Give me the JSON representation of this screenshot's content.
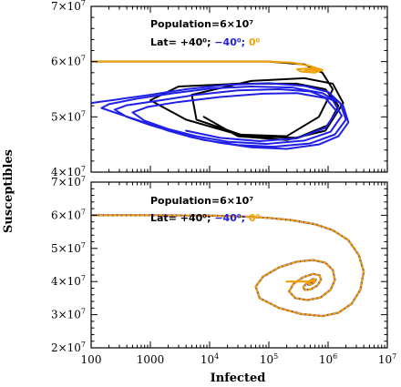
{
  "chart_data": [
    {
      "type": "line",
      "panel": "top",
      "xscale": "log",
      "xlim": [
        100,
        10000000
      ],
      "ylim": [
        20000000,
        70000000
      ],
      "visible_ylim": [
        40000000,
        70000000
      ],
      "xticks": [
        "",
        "",
        "",
        "",
        "",
        ""
      ],
      "yticks": [
        "4×10⁷",
        "5×10⁷",
        "6×10⁷",
        "7×10⁷"
      ],
      "yticks_pos": [
        40000000,
        50000000,
        60000000,
        70000000
      ],
      "annotation_population": "Population=6×10⁷",
      "annotation_lat_prefix": "Lat=",
      "annotation_lat": [
        {
          "text": "+40⁰;",
          "color": "#000000"
        },
        {
          "text": "−40⁰;",
          "color": "#1f1fe6"
        },
        {
          "text": "0⁰",
          "color": "#f0a000"
        }
      ],
      "series": [
        {
          "color": "#000000",
          "x": [
            100,
            100000,
            400000,
            800000,
            1200000,
            700000,
            200000,
            30000,
            4000,
            1000,
            3000,
            30000,
            300000,
            900000,
            1500000,
            1000000,
            300000,
            40000,
            6000,
            5000,
            50000,
            400000,
            1200000,
            1800000,
            900000,
            200000,
            30000,
            8000
          ],
          "y": [
            60000000,
            60000000,
            59500000,
            58000000,
            55000000,
            50000000,
            46500000,
            46800000,
            49500000,
            53000000,
            55500000,
            56000000,
            56000000,
            55000000,
            52000000,
            48500000,
            46200000,
            46500000,
            49500000,
            54000000,
            56500000,
            57000000,
            56000000,
            52500000,
            47500000,
            45800000,
            46500000,
            50000000
          ]
        },
        {
          "color": "#f0a000",
          "x": [
            100,
            100000,
            250000,
            500000,
            800000,
            600000,
            350000,
            300000,
            500000,
            700000,
            550000,
            400000,
            450000,
            600000
          ],
          "y": [
            60000000,
            60000000,
            59800000,
            59200000,
            58500000,
            58000000,
            58200000,
            58600000,
            58800000,
            58500000,
            58100000,
            58300000,
            58600000,
            58400000
          ]
        },
        {
          "color": "#1f1fe6",
          "x": [
            100,
            300,
            1000,
            4000,
            20000,
            100000,
            400000,
            1000000,
            1800000,
            2200000,
            1500000,
            700000,
            200000,
            50000,
            15000,
            5000,
            2000,
            800,
            300,
            150,
            200,
            600,
            2500,
            10000,
            50000,
            250000,
            800000,
            1600000,
            2000000,
            1300000,
            500000,
            120000,
            30000,
            8000,
            3000,
            1000,
            400,
            250,
            400,
            1500,
            6000,
            30000,
            150000,
            500000,
            1200000,
            1700000,
            1100000,
            400000,
            90000,
            20000,
            6000,
            2000,
            800,
            500,
            900,
            3000,
            15000,
            80000,
            300000,
            900000,
            1400000,
            900000,
            300000,
            70000,
            15000,
            4000
          ],
          "y": [
            52500000,
            53200000,
            54000000,
            55000000,
            55800000,
            56100000,
            55600000,
            54500000,
            52000000,
            49000000,
            46500000,
            45000000,
            44200000,
            44500000,
            45300000,
            46300000,
            47500000,
            49000000,
            50500000,
            51600000,
            52300000,
            53300000,
            54300000,
            55100000,
            55500000,
            55300000,
            54300000,
            52500000,
            49500000,
            46800000,
            45200000,
            44600000,
            44900000,
            45800000,
            47000000,
            48500000,
            50000000,
            51300000,
            52100000,
            53000000,
            54000000,
            54800000,
            55000000,
            54600000,
            53000000,
            50200000,
            47300000,
            45700000,
            45100000,
            45500000,
            46500000,
            47800000,
            49300000,
            50800000,
            51800000,
            52700000,
            53600000,
            54200000,
            54300000,
            53400000,
            51000000,
            48000000,
            46100000,
            45600000,
            46200000,
            47500000
          ]
        }
      ]
    },
    {
      "type": "line",
      "panel": "bottom",
      "xscale": "log",
      "xlim": [
        100,
        10000000
      ],
      "ylim": [
        20000000,
        70000000
      ],
      "xticks": [
        "100",
        "1000",
        "10⁴",
        "10⁵",
        "10⁶",
        "10⁷"
      ],
      "xticks_pos": [
        100,
        1000,
        10000,
        100000,
        1000000,
        10000000
      ],
      "yticks": [
        "2×10⁷",
        "3×10⁷",
        "4×10⁷",
        "5×10⁷",
        "6×10⁷",
        "7×10⁷"
      ],
      "yticks_pos": [
        20000000,
        30000000,
        40000000,
        50000000,
        60000000,
        70000000
      ],
      "xlabel": "Infected",
      "annotation_population": "Population=6×10⁷",
      "annotation_lat_prefix": "Lat=",
      "annotation_lat": [
        {
          "text": "+40⁰;",
          "color": "#000000"
        },
        {
          "text": "−40⁰;",
          "color": "#1f1fe6"
        },
        {
          "text": "0⁰",
          "color": "#f0a000"
        }
      ],
      "series": [
        {
          "color": "#1f1fe6",
          "dashed": false,
          "x": [
            100,
            1000,
            10000,
            40000,
            100000,
            250000,
            600000,
            1200000,
            2200000,
            3300000,
            4000000,
            3500000,
            2500000,
            1500000,
            800000,
            350000,
            150000,
            70000,
            60000,
            80000,
            150000,
            300000,
            550000,
            900000,
            1200000,
            1300000,
            1100000,
            750000,
            450000,
            280000,
            220000,
            260000,
            380000,
            560000,
            720000,
            760000,
            650000,
            500000,
            400000,
            380000,
            450000,
            560000,
            620000,
            580000,
            500000,
            460000,
            490000,
            540000,
            550000,
            520000
          ],
          "y": [
            60000000,
            60000000,
            59900000,
            59600000,
            59200000,
            58500000,
            57300000,
            55500000,
            52500000,
            48000000,
            43000000,
            37500000,
            33300000,
            30600000,
            29600000,
            30200000,
            32000000,
            35000000,
            38500000,
            41500000,
            44300000,
            46000000,
            46500000,
            45700000,
            43500000,
            40500000,
            37500000,
            35200000,
            34400000,
            35000000,
            37000000,
            39300000,
            41300000,
            42300000,
            41900000,
            40500000,
            38700000,
            37600000,
            37500000,
            38400000,
            39700000,
            40800000,
            40600000,
            39700000,
            39000000,
            39100000,
            39800000,
            40400000,
            40100000,
            39700000
          ]
        },
        {
          "color": "#f0a000",
          "dashed": true,
          "x": [
            100,
            1000,
            10000,
            40000,
            100000,
            250000,
            600000,
            1200000,
            2200000,
            3300000,
            4000000,
            3500000,
            2500000,
            1500000,
            800000,
            350000,
            150000,
            70000,
            60000,
            80000,
            150000,
            300000,
            550000,
            900000,
            1200000,
            1300000,
            1100000,
            750000,
            450000,
            280000,
            220000,
            260000,
            380000,
            560000,
            720000,
            760000,
            650000,
            500000,
            400000,
            380000,
            450000,
            560000,
            620000,
            580000,
            500000,
            460000,
            490000,
            540000,
            550000,
            520000
          ],
          "y": [
            60000000,
            60000000,
            59900000,
            59600000,
            59200000,
            58500000,
            57300000,
            55500000,
            52500000,
            48000000,
            43000000,
            37500000,
            33300000,
            30600000,
            29600000,
            30200000,
            32000000,
            35000000,
            38500000,
            41500000,
            44300000,
            46000000,
            46500000,
            45700000,
            43500000,
            40500000,
            37500000,
            35200000,
            34400000,
            35000000,
            37000000,
            39300000,
            41300000,
            42300000,
            41900000,
            40500000,
            38700000,
            37600000,
            37500000,
            38400000,
            39700000,
            40800000,
            40600000,
            39700000,
            39000000,
            39100000,
            39800000,
            40400000,
            40100000,
            39700000
          ]
        },
        {
          "color": "#f0a000",
          "dashed": false,
          "x": [
            200000,
            300000,
            400000,
            500000,
            600000
          ],
          "y": [
            40000000,
            40000000,
            40000000,
            40000000,
            40000000
          ]
        }
      ]
    }
  ],
  "ylabel": "Susceptibles"
}
